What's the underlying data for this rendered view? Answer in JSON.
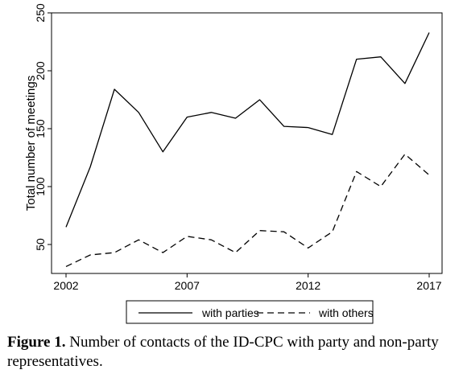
{
  "chart_data": {
    "type": "line",
    "ylabel": "Total number of meetings",
    "xlabel": "",
    "xlim": [
      2002,
      2017
    ],
    "ylim": [
      25,
      250
    ],
    "xticks": [
      "2002",
      "2007",
      "2012",
      "2017"
    ],
    "yticks": [
      "50",
      "100",
      "150",
      "200",
      "250"
    ],
    "grid": false,
    "legend_position": "bottom",
    "x": [
      2002,
      2003,
      2004,
      2005,
      2006,
      2007,
      2008,
      2009,
      2010,
      2011,
      2012,
      2013,
      2014,
      2015,
      2016,
      2017
    ],
    "series": [
      {
        "name": "with parties",
        "style": "solid",
        "values": [
          65,
          117,
          184,
          164,
          130,
          160,
          164,
          159,
          175,
          152,
          151,
          145,
          210,
          212,
          189,
          233
        ]
      },
      {
        "name": "with others",
        "style": "dashed",
        "values": [
          31,
          41,
          43,
          54,
          43,
          57,
          54,
          43,
          62,
          61,
          47,
          61,
          113,
          100,
          128,
          110
        ]
      }
    ]
  },
  "caption": {
    "label": "Figure 1.",
    "text": "Number of contacts of the ID-CPC with party and non-party representatives."
  }
}
